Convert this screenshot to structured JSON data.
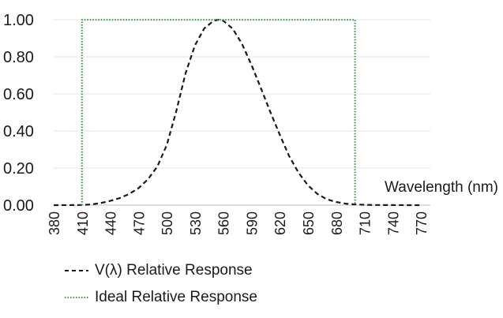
{
  "chart_data": {
    "type": "line",
    "xlabel": "Wavelength (nm)",
    "x_ticks": [
      380,
      410,
      440,
      470,
      500,
      530,
      560,
      590,
      620,
      650,
      680,
      710,
      740,
      770
    ],
    "y_ticks": [
      "0.00",
      "0.20",
      "0.40",
      "0.60",
      "0.80",
      "1.00"
    ],
    "ylim": [
      0,
      1
    ],
    "xlim": [
      380,
      780
    ],
    "grid": "horizontal",
    "legend_position": "bottom",
    "series": [
      {
        "name": "V(λ) Relative Response",
        "style": "dashed",
        "color": "#1a1a1a",
        "x": [
          380,
          400,
          410,
          420,
          430,
          440,
          450,
          460,
          470,
          480,
          490,
          500,
          510,
          520,
          530,
          540,
          550,
          555,
          560,
          570,
          580,
          590,
          600,
          610,
          620,
          630,
          640,
          650,
          660,
          670,
          680,
          690,
          700,
          710,
          720,
          740,
          760,
          770
        ],
        "values": [
          0.0,
          0.0004,
          0.0012,
          0.004,
          0.0116,
          0.023,
          0.038,
          0.06,
          0.091,
          0.139,
          0.208,
          0.323,
          0.503,
          0.71,
          0.862,
          0.954,
          0.995,
          1.0,
          0.995,
          0.952,
          0.87,
          0.757,
          0.631,
          0.503,
          0.381,
          0.265,
          0.175,
          0.107,
          0.061,
          0.032,
          0.017,
          0.008,
          0.004,
          0.002,
          0.001,
          0.0003,
          0.0001,
          0.0
        ]
      },
      {
        "name": "Ideal Relative Response",
        "style": "dotted",
        "color": "#3a9a4a",
        "x": [
          410,
          410,
          700,
          700
        ],
        "values": [
          0,
          1,
          1,
          0
        ]
      }
    ]
  }
}
